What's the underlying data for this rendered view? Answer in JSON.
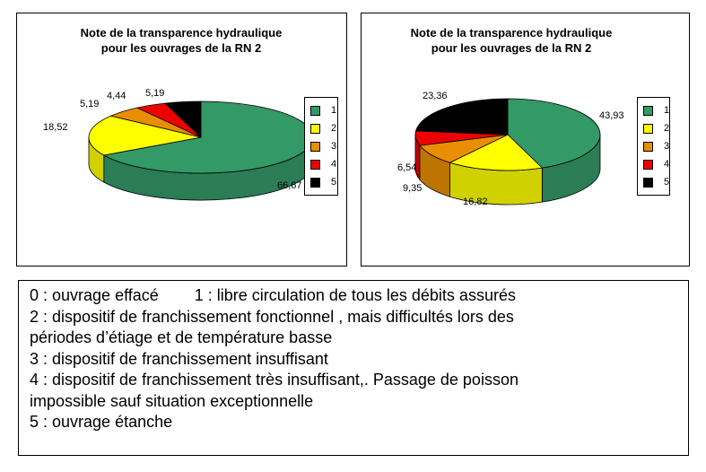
{
  "chart_data": [
    {
      "type": "pie",
      "style": "3d",
      "title": "Note de la transparence hydraulique pour les ouvrages de la RN 2",
      "title_lines": [
        "Note de la transparence hydraulique",
        "pour les ouvrages de la RN 2"
      ],
      "categories": [
        "1",
        "2",
        "3",
        "4",
        "5"
      ],
      "values": [
        66.67,
        18.52,
        5.19,
        4.44,
        5.19
      ],
      "labels": [
        "66,67",
        "18,52",
        "5,19",
        "4,44",
        "5,19"
      ],
      "legend": "right"
    },
    {
      "type": "pie",
      "style": "3d",
      "title": "Note de la transparence hydraulique pour les ouvrages de la RN 2",
      "title_lines": [
        "Note de la transparence hydraulique",
        "pour les ouvrages de la RN 2"
      ],
      "categories": [
        "1",
        "2",
        "3",
        "4",
        "5"
      ],
      "values": [
        43.93,
        16.82,
        9.35,
        6.54,
        23.36
      ],
      "labels": [
        "43,93",
        "16,82",
        "9,35",
        "6,54",
        "23,36"
      ],
      "legend": "right"
    }
  ],
  "colors": [
    "#339966",
    "#ffff00",
    "#e88e00",
    "#ee0000",
    "#000000"
  ],
  "notes": [
    "0 : ouvrage effacé        1 : libre circulation de tous les débits assurés",
    "2 : dispositif de franchissement fonctionnel , mais difficultés lors des",
    "périodes d’étiage et de température basse",
    "3 : dispositif de franchissement insuffisant",
    "4 : dispositif de franchissement très insuffisant,. Passage de poisson",
    "impossible sauf situation exceptionnelle",
    "5 : ouvrage étanche"
  ]
}
